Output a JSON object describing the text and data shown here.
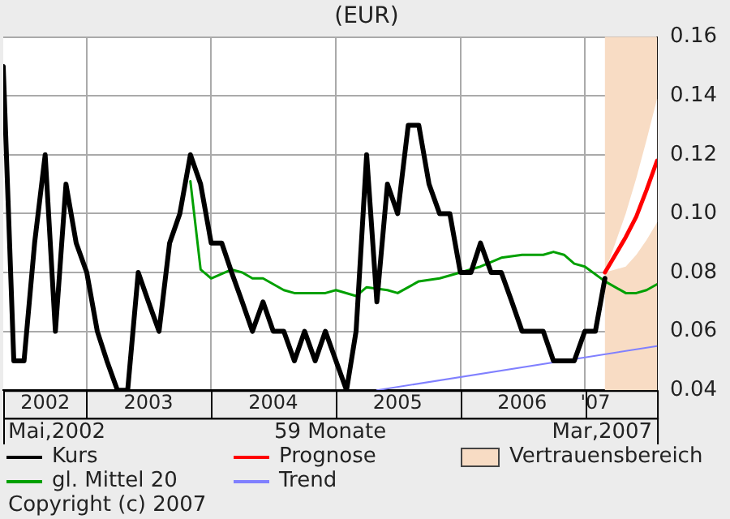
{
  "chart_data": {
    "type": "line",
    "title": "(EUR)",
    "xlabel": "59 Monate",
    "annotations": [
      "Mai,2002",
      "Mar,2007",
      "Copyright (c) 2007"
    ],
    "xlim": [
      "2002-05",
      "2007-08"
    ],
    "xticks": [
      {
        "value": "2002-09",
        "label": "2002"
      },
      {
        "value": "2003-01",
        "label": null
      },
      {
        "value": "2003-07",
        "label": "2003"
      },
      {
        "value": "2004-01",
        "label": null
      },
      {
        "value": "2004-07",
        "label": "2004"
      },
      {
        "value": "2005-01",
        "label": null
      },
      {
        "value": "2005-07",
        "label": "2005"
      },
      {
        "value": "2006-01",
        "label": null
      },
      {
        "value": "2006-07",
        "label": "2006"
      },
      {
        "value": "2007-01",
        "label": null
      },
      {
        "value": "2007-02",
        "label": "'07"
      }
    ],
    "ylim": [
      0.04,
      0.16
    ],
    "yticks": [
      0.04,
      0.06,
      0.08,
      {
        "value": 0.1,
        "label": "0.10"
      },
      0.12,
      0.14,
      0.16
    ],
    "grid": true,
    "legend": "bottom",
    "marker": "none",
    "bands": [
      {
        "axis": "x",
        "from": "2007-03",
        "to": "2007-08",
        "label": "Vertrauensbereich",
        "color": "#f8dcc4"
      }
    ],
    "series": [
      {
        "name": "Kurs",
        "type": "line",
        "color": "#000000",
        "x": [
          "2002-05",
          "2002-06",
          "2002-07",
          "2002-08",
          "2002-09",
          "2002-10",
          "2002-11",
          "2002-12",
          "2003-01",
          "2003-02",
          "2003-03",
          "2003-04",
          "2003-05",
          "2003-06",
          "2003-07",
          "2003-08",
          "2003-09",
          "2003-10",
          "2003-11",
          "2003-12",
          "2004-01",
          "2004-02",
          "2004-03",
          "2004-04",
          "2004-05",
          "2004-06",
          "2004-07",
          "2004-08",
          "2004-09",
          "2004-10",
          "2004-11",
          "2004-12",
          "2005-01",
          "2005-02",
          "2005-03",
          "2005-04",
          "2005-05",
          "2005-06",
          "2005-07",
          "2005-08",
          "2005-09",
          "2005-10",
          "2005-11",
          "2005-12",
          "2006-01",
          "2006-02",
          "2006-03",
          "2006-04",
          "2006-05",
          "2006-06",
          "2006-07",
          "2006-08",
          "2006-09",
          "2006-10",
          "2006-11",
          "2006-12",
          "2007-01",
          "2007-02",
          "2007-03"
        ],
        "values": [
          0.15,
          0.05,
          0.05,
          0.09,
          0.12,
          0.06,
          0.11,
          0.09,
          0.08,
          0.06,
          0.05,
          0.04,
          0.04,
          0.08,
          0.07,
          0.06,
          0.09,
          0.1,
          0.12,
          0.11,
          0.09,
          0.09,
          0.08,
          0.07,
          0.06,
          0.07,
          0.06,
          0.06,
          0.05,
          0.06,
          0.05,
          0.06,
          0.05,
          0.04,
          0.06,
          0.12,
          0.07,
          0.11,
          0.1,
          0.13,
          0.13,
          0.11,
          0.1,
          0.1,
          0.08,
          0.08,
          0.09,
          0.08,
          0.08,
          0.07,
          0.06,
          0.06,
          0.06,
          0.05,
          0.05,
          0.05,
          0.06,
          0.06,
          0.078
        ]
      },
      {
        "name": "gl. Mittel 20",
        "type": "line",
        "color": "#00a000",
        "x": [
          "2003-11",
          "2003-12",
          "2004-01",
          "2004-03",
          "2004-04",
          "2004-05",
          "2004-06",
          "2004-08",
          "2004-09",
          "2004-12",
          "2005-01",
          "2005-03",
          "2005-04",
          "2005-06",
          "2005-07",
          "2005-09",
          "2005-11",
          "2006-01",
          "2006-03",
          "2006-05",
          "2006-07",
          "2006-09",
          "2006-10",
          "2006-11",
          "2006-12",
          "2007-01",
          "2007-03",
          "2007-05",
          "2007-06",
          "2007-07",
          "2007-08"
        ],
        "values": [
          0.111,
          0.081,
          0.078,
          0.081,
          0.08,
          0.078,
          0.078,
          0.074,
          0.073,
          0.073,
          0.074,
          0.072,
          0.075,
          0.074,
          0.073,
          0.077,
          0.078,
          0.08,
          0.082,
          0.085,
          0.086,
          0.086,
          0.087,
          0.086,
          0.083,
          0.082,
          0.077,
          0.073,
          0.073,
          0.074,
          0.076
        ]
      },
      {
        "name": "Prognose",
        "type": "line",
        "color": "#ff0000",
        "x": [
          "2007-03",
          "2007-05",
          "2007-06",
          "2007-07",
          "2007-08"
        ],
        "values": [
          0.08,
          0.092,
          0.099,
          0.108,
          0.118
        ],
        "lower": [
          0.08,
          0.082,
          0.086,
          0.091,
          0.097
        ],
        "upper": [
          0.08,
          0.1,
          0.112,
          0.125,
          0.139
        ]
      },
      {
        "name": "Trend",
        "type": "line",
        "color": "#8080ff",
        "x": [
          "2005-05",
          "2007-08"
        ],
        "values": [
          0.04,
          0.055
        ]
      }
    ]
  }
}
